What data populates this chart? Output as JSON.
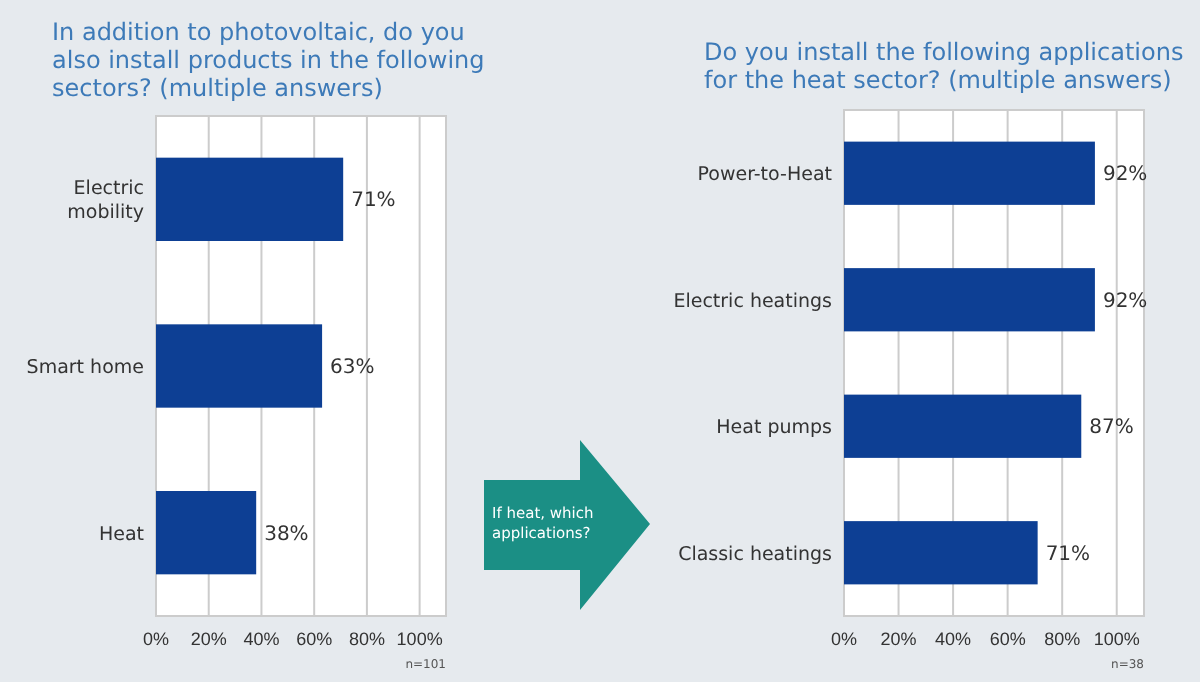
{
  "chart_data": [
    {
      "type": "bar",
      "orientation": "horizontal",
      "title": "In addition to photovoltaic, do you also install products in the following sectors? (multiple answers)",
      "categories": [
        "Electric mobility",
        "Smart home",
        "Heat"
      ],
      "values": [
        71,
        63,
        38
      ],
      "value_labels": [
        "71%",
        "63%",
        "38%"
      ],
      "color": "#0d3f94",
      "xlim": [
        0,
        110
      ],
      "xticks": [
        {
          "value": 0,
          "label": "0%"
        },
        {
          "value": 20,
          "label": "20%"
        },
        {
          "value": 40,
          "label": "40%"
        },
        {
          "value": 60,
          "label": "60%"
        },
        {
          "value": 80,
          "label": "80%"
        },
        {
          "value": 100,
          "label": "100%"
        }
      ],
      "grid": "x",
      "annotations": [
        "If heat, which applications?",
        "n=101"
      ]
    },
    {
      "type": "bar",
      "orientation": "horizontal",
      "title": "Do you install the following applications for the heat sector? (multiple answers)",
      "categories": [
        "Power-to-Heat",
        "Electric heatings",
        "Heat pumps",
        "Classic heatings"
      ],
      "values": [
        92,
        92,
        87,
        71
      ],
      "value_labels": [
        "92%",
        "92%",
        "87%",
        "71%"
      ],
      "color": "#0d3f94",
      "xlim": [
        0,
        110
      ],
      "xticks": [
        {
          "value": 0,
          "label": "0%"
        },
        {
          "value": 20,
          "label": "20%"
        },
        {
          "value": 40,
          "label": "40%"
        },
        {
          "value": 60,
          "label": "60%"
        },
        {
          "value": 80,
          "label": "80%"
        },
        {
          "value": 100,
          "label": "100%"
        }
      ],
      "grid": "x",
      "annotations": [
        "n=38"
      ]
    }
  ]
}
